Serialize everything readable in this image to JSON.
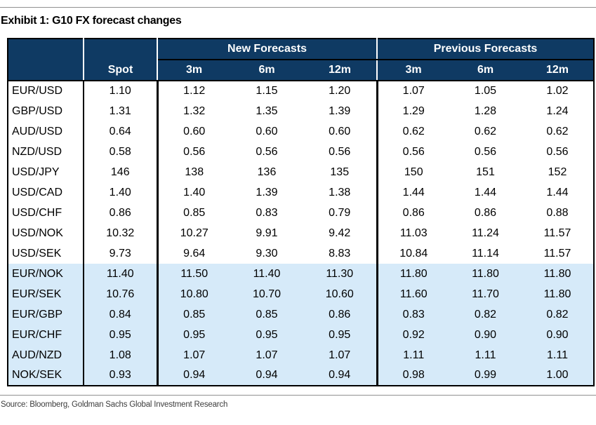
{
  "exhibit": {
    "title": "Exhibit 1: G10 FX forecast changes"
  },
  "table": {
    "corner_label": "",
    "spot_header": "Spot",
    "groups": [
      {
        "label": "New Forecasts",
        "columns": [
          "3m",
          "6m",
          "12m"
        ]
      },
      {
        "label": "Previous Forecasts",
        "columns": [
          "3m",
          "6m",
          "12m"
        ]
      }
    ],
    "rows": [
      {
        "pair": "EUR/USD",
        "spot": "1.10",
        "new": [
          "1.12",
          "1.15",
          "1.20"
        ],
        "previous": [
          "1.07",
          "1.05",
          "1.02"
        ],
        "highlighted": false
      },
      {
        "pair": "GBP/USD",
        "spot": "1.31",
        "new": [
          "1.32",
          "1.35",
          "1.39"
        ],
        "previous": [
          "1.29",
          "1.28",
          "1.24"
        ],
        "highlighted": false
      },
      {
        "pair": "AUD/USD",
        "spot": "0.64",
        "new": [
          "0.60",
          "0.60",
          "0.60"
        ],
        "previous": [
          "0.62",
          "0.62",
          "0.62"
        ],
        "highlighted": false
      },
      {
        "pair": "NZD/USD",
        "spot": "0.58",
        "new": [
          "0.56",
          "0.56",
          "0.56"
        ],
        "previous": [
          "0.56",
          "0.56",
          "0.56"
        ],
        "highlighted": false
      },
      {
        "pair": "USD/JPY",
        "spot": "146",
        "new": [
          "138",
          "136",
          "135"
        ],
        "previous": [
          "150",
          "151",
          "152"
        ],
        "highlighted": false
      },
      {
        "pair": "USD/CAD",
        "spot": "1.40",
        "new": [
          "1.40",
          "1.39",
          "1.38"
        ],
        "previous": [
          "1.44",
          "1.44",
          "1.44"
        ],
        "highlighted": false
      },
      {
        "pair": "USD/CHF",
        "spot": "0.86",
        "new": [
          "0.85",
          "0.83",
          "0.79"
        ],
        "previous": [
          "0.86",
          "0.86",
          "0.88"
        ],
        "highlighted": false
      },
      {
        "pair": "USD/NOK",
        "spot": "10.32",
        "new": [
          "10.27",
          "9.91",
          "9.42"
        ],
        "previous": [
          "11.03",
          "11.24",
          "11.57"
        ],
        "highlighted": false
      },
      {
        "pair": "USD/SEK",
        "spot": "9.73",
        "new": [
          "9.64",
          "9.30",
          "8.83"
        ],
        "previous": [
          "10.84",
          "11.14",
          "11.57"
        ],
        "highlighted": false
      },
      {
        "pair": "EUR/NOK",
        "spot": "11.40",
        "new": [
          "11.50",
          "11.40",
          "11.30"
        ],
        "previous": [
          "11.80",
          "11.80",
          "11.80"
        ],
        "highlighted": true
      },
      {
        "pair": "EUR/SEK",
        "spot": "10.76",
        "new": [
          "10.80",
          "10.70",
          "10.60"
        ],
        "previous": [
          "11.60",
          "11.70",
          "11.80"
        ],
        "highlighted": true
      },
      {
        "pair": "EUR/GBP",
        "spot": "0.84",
        "new": [
          "0.85",
          "0.85",
          "0.86"
        ],
        "previous": [
          "0.83",
          "0.82",
          "0.82"
        ],
        "highlighted": true
      },
      {
        "pair": "EUR/CHF",
        "spot": "0.95",
        "new": [
          "0.95",
          "0.95",
          "0.95"
        ],
        "previous": [
          "0.92",
          "0.90",
          "0.90"
        ],
        "highlighted": true
      },
      {
        "pair": "AUD/NZD",
        "spot": "1.08",
        "new": [
          "1.07",
          "1.07",
          "1.07"
        ],
        "previous": [
          "1.11",
          "1.11",
          "1.11"
        ],
        "highlighted": true
      },
      {
        "pair": "NOK/SEK",
        "spot": "0.93",
        "new": [
          "0.94",
          "0.94",
          "0.94"
        ],
        "previous": [
          "0.98",
          "0.99",
          "1.00"
        ],
        "highlighted": true
      }
    ]
  },
  "footer": {
    "source": "Source: Bloomberg, Goldman Sachs Global Investment Research"
  },
  "colors": {
    "header_navy": "#0f3a63",
    "highlight_blue": "#d6eaf9",
    "rule_gray": "#909090",
    "border_black": "#000000"
  }
}
